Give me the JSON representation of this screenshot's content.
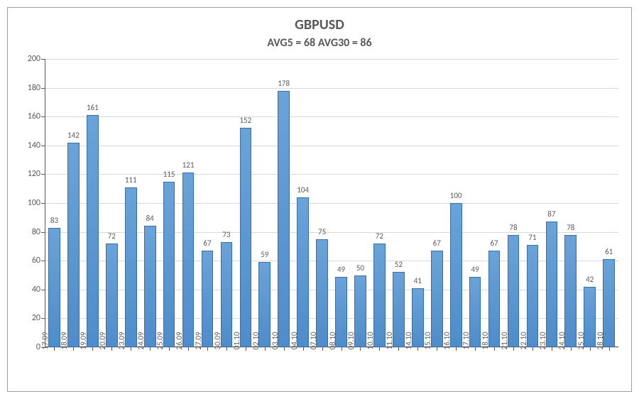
{
  "chart": {
    "type": "bar",
    "title": "GBPUSD",
    "subtitle": "AVG5 = 68 AVG30 = 86",
    "title_fontsize": 20,
    "subtitle_fontsize": 16,
    "title_color": "#595959",
    "background_color": "#ffffff",
    "border_color": "#a0a0a0",
    "grid_color": "#d9d9d9",
    "axis_color": "#595959",
    "label_color": "#595959",
    "label_fontsize": 12,
    "value_fontsize": 11,
    "ylim": [
      0,
      200
    ],
    "ytick_step": 20,
    "yticks": [
      0,
      20,
      40,
      60,
      80,
      100,
      120,
      140,
      160,
      180,
      200
    ],
    "bar_color_top": "#6aa3d8",
    "bar_color_bottom": "#4f8cc9",
    "bar_border_color": "#3a6fa5",
    "bar_width": 0.62,
    "categories": [
      "17.09",
      "18.09",
      "19.09",
      "20.09",
      "23.09",
      "24.09",
      "25.09",
      "26.09",
      "27.09",
      "30.09",
      "01.10",
      "02.10",
      "03.10",
      "04.10",
      "07.10",
      "08.10",
      "09.10",
      "10.10",
      "11.10",
      "14.10",
      "15.10",
      "16.10",
      "17.10",
      "18.10",
      "21.10",
      "22.10",
      "23.10",
      "24.10",
      "25.10",
      "28.10"
    ],
    "values": [
      83,
      142,
      161,
      72,
      111,
      84,
      115,
      121,
      67,
      73,
      152,
      59,
      178,
      104,
      75,
      49,
      50,
      72,
      52,
      41,
      67,
      100,
      49,
      67,
      78,
      71,
      87,
      78,
      42,
      61
    ]
  }
}
